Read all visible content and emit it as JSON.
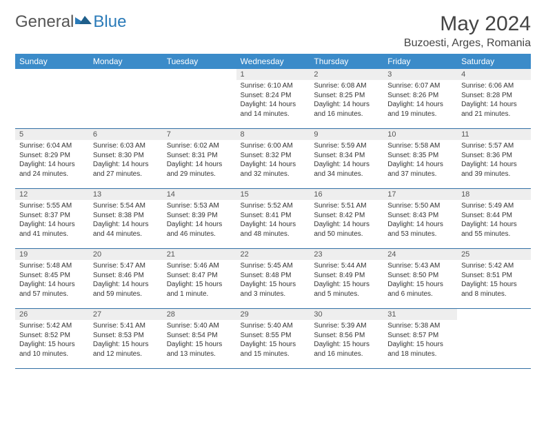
{
  "logo": {
    "text1": "General",
    "text2": "Blue"
  },
  "title": "May 2024",
  "location": "Buzoesti, Arges, Romania",
  "colors": {
    "header_bg": "#3b8bc9",
    "header_text": "#ffffff",
    "day_num_bg": "#eeeeee",
    "row_border": "#2f6ea3",
    "logo_blue": "#2a7ab8",
    "text": "#333333"
  },
  "weekdays": [
    "Sunday",
    "Monday",
    "Tuesday",
    "Wednesday",
    "Thursday",
    "Friday",
    "Saturday"
  ],
  "weeks": [
    [
      {
        "n": "",
        "lines": [
          "",
          "",
          "",
          ""
        ]
      },
      {
        "n": "",
        "lines": [
          "",
          "",
          "",
          ""
        ]
      },
      {
        "n": "",
        "lines": [
          "",
          "",
          "",
          ""
        ]
      },
      {
        "n": "1",
        "lines": [
          "Sunrise: 6:10 AM",
          "Sunset: 8:24 PM",
          "Daylight: 14 hours",
          "and 14 minutes."
        ]
      },
      {
        "n": "2",
        "lines": [
          "Sunrise: 6:08 AM",
          "Sunset: 8:25 PM",
          "Daylight: 14 hours",
          "and 16 minutes."
        ]
      },
      {
        "n": "3",
        "lines": [
          "Sunrise: 6:07 AM",
          "Sunset: 8:26 PM",
          "Daylight: 14 hours",
          "and 19 minutes."
        ]
      },
      {
        "n": "4",
        "lines": [
          "Sunrise: 6:06 AM",
          "Sunset: 8:28 PM",
          "Daylight: 14 hours",
          "and 21 minutes."
        ]
      }
    ],
    [
      {
        "n": "5",
        "lines": [
          "Sunrise: 6:04 AM",
          "Sunset: 8:29 PM",
          "Daylight: 14 hours",
          "and 24 minutes."
        ]
      },
      {
        "n": "6",
        "lines": [
          "Sunrise: 6:03 AM",
          "Sunset: 8:30 PM",
          "Daylight: 14 hours",
          "and 27 minutes."
        ]
      },
      {
        "n": "7",
        "lines": [
          "Sunrise: 6:02 AM",
          "Sunset: 8:31 PM",
          "Daylight: 14 hours",
          "and 29 minutes."
        ]
      },
      {
        "n": "8",
        "lines": [
          "Sunrise: 6:00 AM",
          "Sunset: 8:32 PM",
          "Daylight: 14 hours",
          "and 32 minutes."
        ]
      },
      {
        "n": "9",
        "lines": [
          "Sunrise: 5:59 AM",
          "Sunset: 8:34 PM",
          "Daylight: 14 hours",
          "and 34 minutes."
        ]
      },
      {
        "n": "10",
        "lines": [
          "Sunrise: 5:58 AM",
          "Sunset: 8:35 PM",
          "Daylight: 14 hours",
          "and 37 minutes."
        ]
      },
      {
        "n": "11",
        "lines": [
          "Sunrise: 5:57 AM",
          "Sunset: 8:36 PM",
          "Daylight: 14 hours",
          "and 39 minutes."
        ]
      }
    ],
    [
      {
        "n": "12",
        "lines": [
          "Sunrise: 5:55 AM",
          "Sunset: 8:37 PM",
          "Daylight: 14 hours",
          "and 41 minutes."
        ]
      },
      {
        "n": "13",
        "lines": [
          "Sunrise: 5:54 AM",
          "Sunset: 8:38 PM",
          "Daylight: 14 hours",
          "and 44 minutes."
        ]
      },
      {
        "n": "14",
        "lines": [
          "Sunrise: 5:53 AM",
          "Sunset: 8:39 PM",
          "Daylight: 14 hours",
          "and 46 minutes."
        ]
      },
      {
        "n": "15",
        "lines": [
          "Sunrise: 5:52 AM",
          "Sunset: 8:41 PM",
          "Daylight: 14 hours",
          "and 48 minutes."
        ]
      },
      {
        "n": "16",
        "lines": [
          "Sunrise: 5:51 AM",
          "Sunset: 8:42 PM",
          "Daylight: 14 hours",
          "and 50 minutes."
        ]
      },
      {
        "n": "17",
        "lines": [
          "Sunrise: 5:50 AM",
          "Sunset: 8:43 PM",
          "Daylight: 14 hours",
          "and 53 minutes."
        ]
      },
      {
        "n": "18",
        "lines": [
          "Sunrise: 5:49 AM",
          "Sunset: 8:44 PM",
          "Daylight: 14 hours",
          "and 55 minutes."
        ]
      }
    ],
    [
      {
        "n": "19",
        "lines": [
          "Sunrise: 5:48 AM",
          "Sunset: 8:45 PM",
          "Daylight: 14 hours",
          "and 57 minutes."
        ]
      },
      {
        "n": "20",
        "lines": [
          "Sunrise: 5:47 AM",
          "Sunset: 8:46 PM",
          "Daylight: 14 hours",
          "and 59 minutes."
        ]
      },
      {
        "n": "21",
        "lines": [
          "Sunrise: 5:46 AM",
          "Sunset: 8:47 PM",
          "Daylight: 15 hours",
          "and 1 minute."
        ]
      },
      {
        "n": "22",
        "lines": [
          "Sunrise: 5:45 AM",
          "Sunset: 8:48 PM",
          "Daylight: 15 hours",
          "and 3 minutes."
        ]
      },
      {
        "n": "23",
        "lines": [
          "Sunrise: 5:44 AM",
          "Sunset: 8:49 PM",
          "Daylight: 15 hours",
          "and 5 minutes."
        ]
      },
      {
        "n": "24",
        "lines": [
          "Sunrise: 5:43 AM",
          "Sunset: 8:50 PM",
          "Daylight: 15 hours",
          "and 6 minutes."
        ]
      },
      {
        "n": "25",
        "lines": [
          "Sunrise: 5:42 AM",
          "Sunset: 8:51 PM",
          "Daylight: 15 hours",
          "and 8 minutes."
        ]
      }
    ],
    [
      {
        "n": "26",
        "lines": [
          "Sunrise: 5:42 AM",
          "Sunset: 8:52 PM",
          "Daylight: 15 hours",
          "and 10 minutes."
        ]
      },
      {
        "n": "27",
        "lines": [
          "Sunrise: 5:41 AM",
          "Sunset: 8:53 PM",
          "Daylight: 15 hours",
          "and 12 minutes."
        ]
      },
      {
        "n": "28",
        "lines": [
          "Sunrise: 5:40 AM",
          "Sunset: 8:54 PM",
          "Daylight: 15 hours",
          "and 13 minutes."
        ]
      },
      {
        "n": "29",
        "lines": [
          "Sunrise: 5:40 AM",
          "Sunset: 8:55 PM",
          "Daylight: 15 hours",
          "and 15 minutes."
        ]
      },
      {
        "n": "30",
        "lines": [
          "Sunrise: 5:39 AM",
          "Sunset: 8:56 PM",
          "Daylight: 15 hours",
          "and 16 minutes."
        ]
      },
      {
        "n": "31",
        "lines": [
          "Sunrise: 5:38 AM",
          "Sunset: 8:57 PM",
          "Daylight: 15 hours",
          "and 18 minutes."
        ]
      },
      {
        "n": "",
        "lines": [
          "",
          "",
          "",
          ""
        ]
      }
    ]
  ]
}
